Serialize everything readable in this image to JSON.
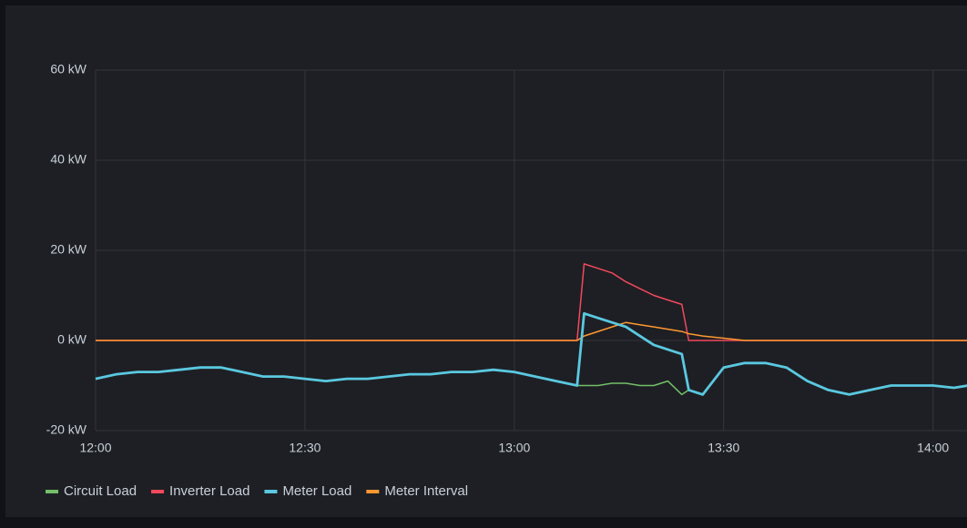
{
  "chart_data": {
    "type": "line",
    "x": [
      "12:00",
      "12:03",
      "12:06",
      "12:09",
      "12:12",
      "12:15",
      "12:18",
      "12:21",
      "12:24",
      "12:27",
      "12:30",
      "12:33",
      "12:36",
      "12:39",
      "12:42",
      "12:45",
      "12:48",
      "12:51",
      "12:54",
      "12:57",
      "13:00",
      "13:03",
      "13:06",
      "13:09",
      "13:10",
      "13:12",
      "13:14",
      "13:16",
      "13:18",
      "13:20",
      "13:22",
      "13:24",
      "13:25",
      "13:27",
      "13:30",
      "13:33",
      "13:36",
      "13:39",
      "13:42",
      "13:45",
      "13:48",
      "13:51",
      "13:54",
      "13:57",
      "14:00",
      "14:03",
      "14:05"
    ],
    "xlim": [
      "12:00",
      "14:05"
    ],
    "xticks": [
      "12:00",
      "12:30",
      "13:00",
      "13:30",
      "14:00"
    ],
    "ylim": [
      -20,
      60
    ],
    "yticks": [
      {
        "value": -20,
        "label": "-20 kW"
      },
      {
        "value": 0,
        "label": "0 kW"
      },
      {
        "value": 20,
        "label": "20 kW"
      },
      {
        "value": 40,
        "label": "40 kW"
      },
      {
        "value": 60,
        "label": "60 kW"
      }
    ],
    "grid": true,
    "legend": "bottom-left",
    "series": [
      {
        "name": "Circuit Load",
        "color": "#73bf69",
        "values": [
          -8.5,
          -7.5,
          -7,
          -7,
          -6.5,
          -6,
          -6,
          -7,
          -8,
          -8,
          -8.5,
          -9,
          -8.5,
          -8.5,
          -8,
          -7.5,
          -7.5,
          -7,
          -7,
          -6.5,
          -7,
          -8,
          -9,
          -10,
          -10,
          -10,
          -9.5,
          -9.5,
          -10,
          -10,
          -9,
          -12,
          -11,
          -12,
          -6,
          -5,
          -5,
          -6,
          -9,
          -11,
          -12,
          -11,
          -10,
          -10,
          -10,
          -10.5,
          -10
        ]
      },
      {
        "name": "Inverter Load",
        "color": "#f2495c",
        "values": [
          0,
          0,
          0,
          0,
          0,
          0,
          0,
          0,
          0,
          0,
          0,
          0,
          0,
          0,
          0,
          0,
          0,
          0,
          0,
          0,
          0,
          0,
          0,
          0,
          17,
          16,
          15,
          13,
          11.5,
          10,
          9,
          8,
          0,
          0,
          0,
          0,
          0,
          0,
          0,
          0,
          0,
          0,
          0,
          0,
          0,
          0,
          0
        ]
      },
      {
        "name": "Meter Load",
        "color": "#5ac8e0",
        "values": [
          -8.5,
          -7.5,
          -7,
          -7,
          -6.5,
          -6,
          -6,
          -7,
          -8,
          -8,
          -8.5,
          -9,
          -8.5,
          -8.5,
          -8,
          -7.5,
          -7.5,
          -7,
          -7,
          -6.5,
          -7,
          -8,
          -9,
          -10,
          6,
          5,
          4,
          3,
          1,
          -1,
          -2,
          -3,
          -11,
          -12,
          -6,
          -5,
          -5,
          -6,
          -9,
          -11,
          -12,
          -11,
          -10,
          -10,
          -10,
          -10.5,
          -10
        ]
      },
      {
        "name": "Meter Interval",
        "color": "#ff9830",
        "values": [
          0,
          0,
          0,
          0,
          0,
          0,
          0,
          0,
          0,
          0,
          0,
          0,
          0,
          0,
          0,
          0,
          0,
          0,
          0,
          0,
          0,
          0,
          0,
          0,
          1,
          2,
          3,
          4,
          3.5,
          3,
          2.5,
          2,
          1.5,
          1,
          0.5,
          0,
          0,
          0,
          0,
          0,
          0,
          0,
          0,
          0,
          0,
          0,
          0
        ]
      }
    ]
  }
}
